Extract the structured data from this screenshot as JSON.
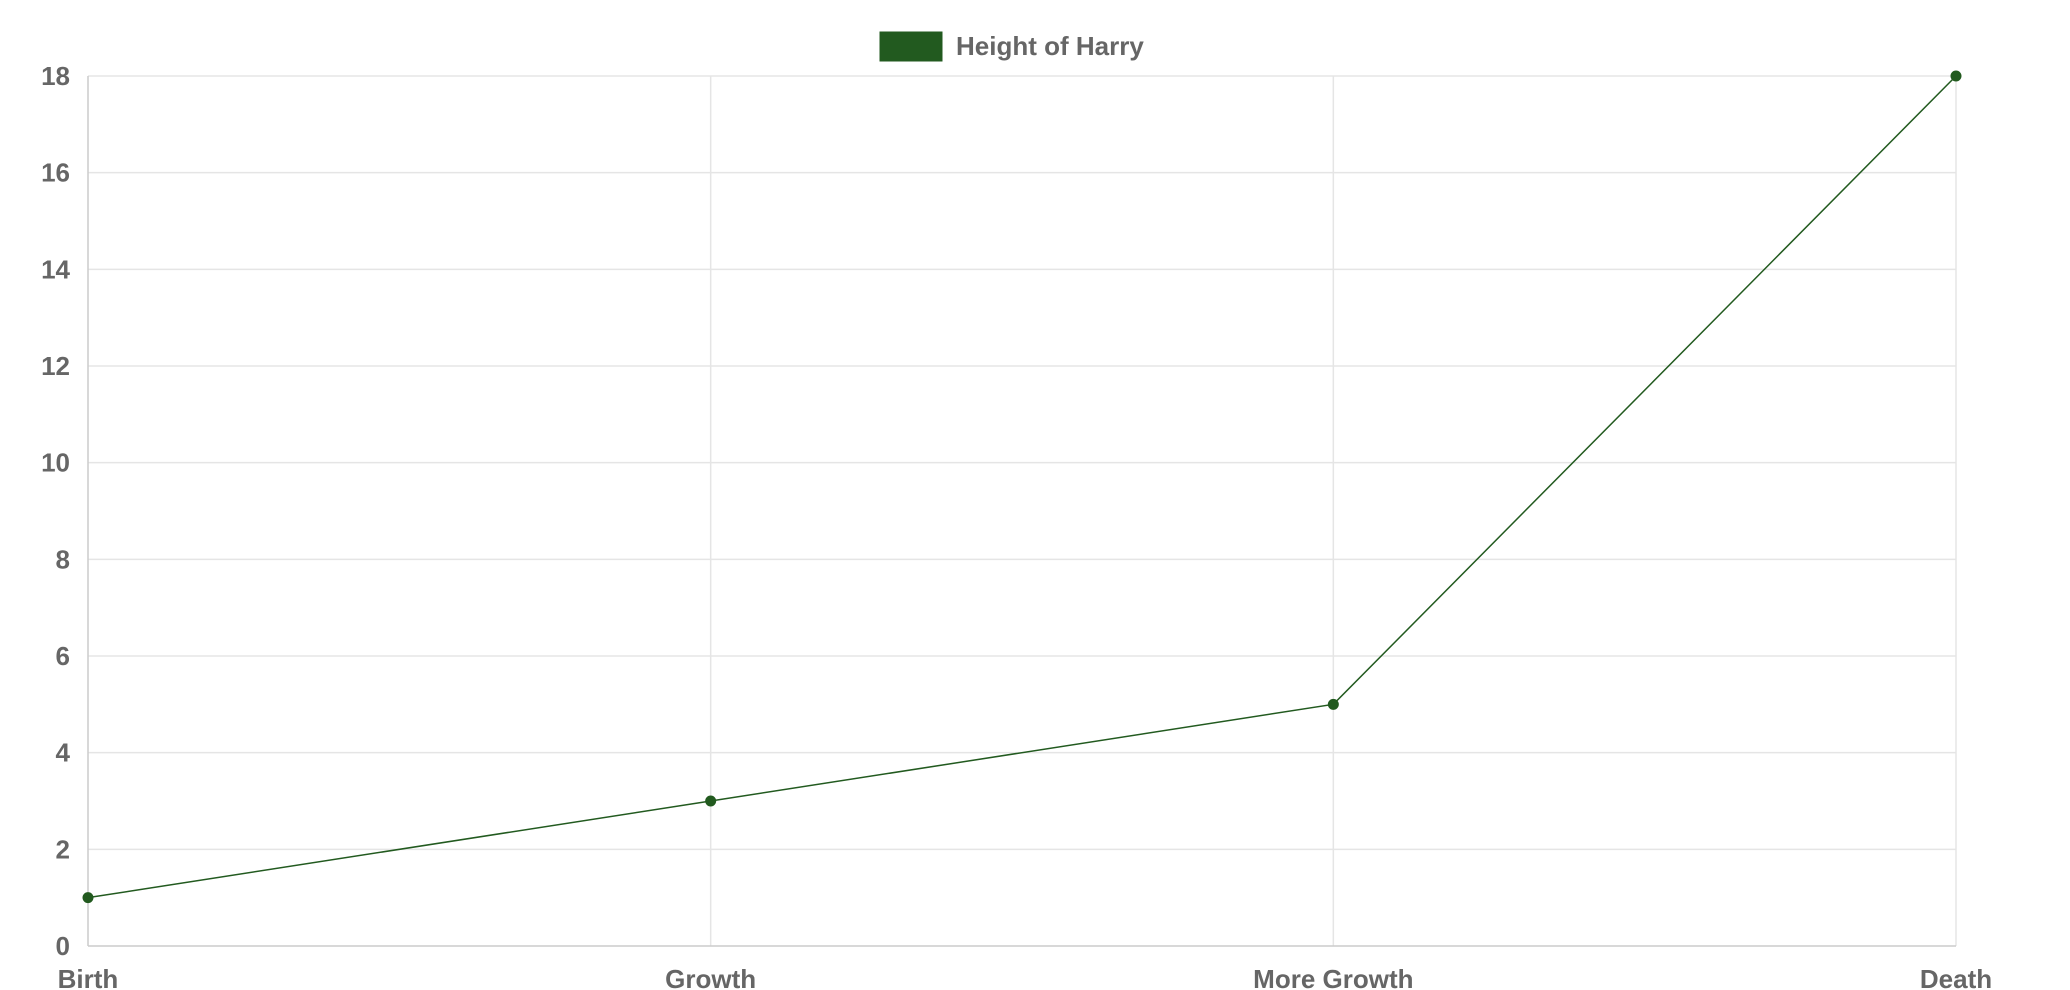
{
  "chart_data": {
    "type": "line",
    "categories": [
      "Birth",
      "Growth",
      "More Growth",
      "Death"
    ],
    "series": [
      {
        "name": "Height of Harry",
        "values": [
          1,
          3,
          5,
          18
        ],
        "color": "#225a1f"
      }
    ],
    "ylim": [
      0,
      18
    ],
    "y_ticks": [
      0,
      2,
      4,
      6,
      8,
      10,
      12,
      14,
      16,
      18
    ],
    "grid": true,
    "legend_position": "top-center",
    "title": "",
    "xlabel": "",
    "ylabel": ""
  },
  "colors": {
    "series": "#225a1f",
    "grid": "#e5e5e5",
    "axis": "#cccccc",
    "text": "#666666"
  }
}
